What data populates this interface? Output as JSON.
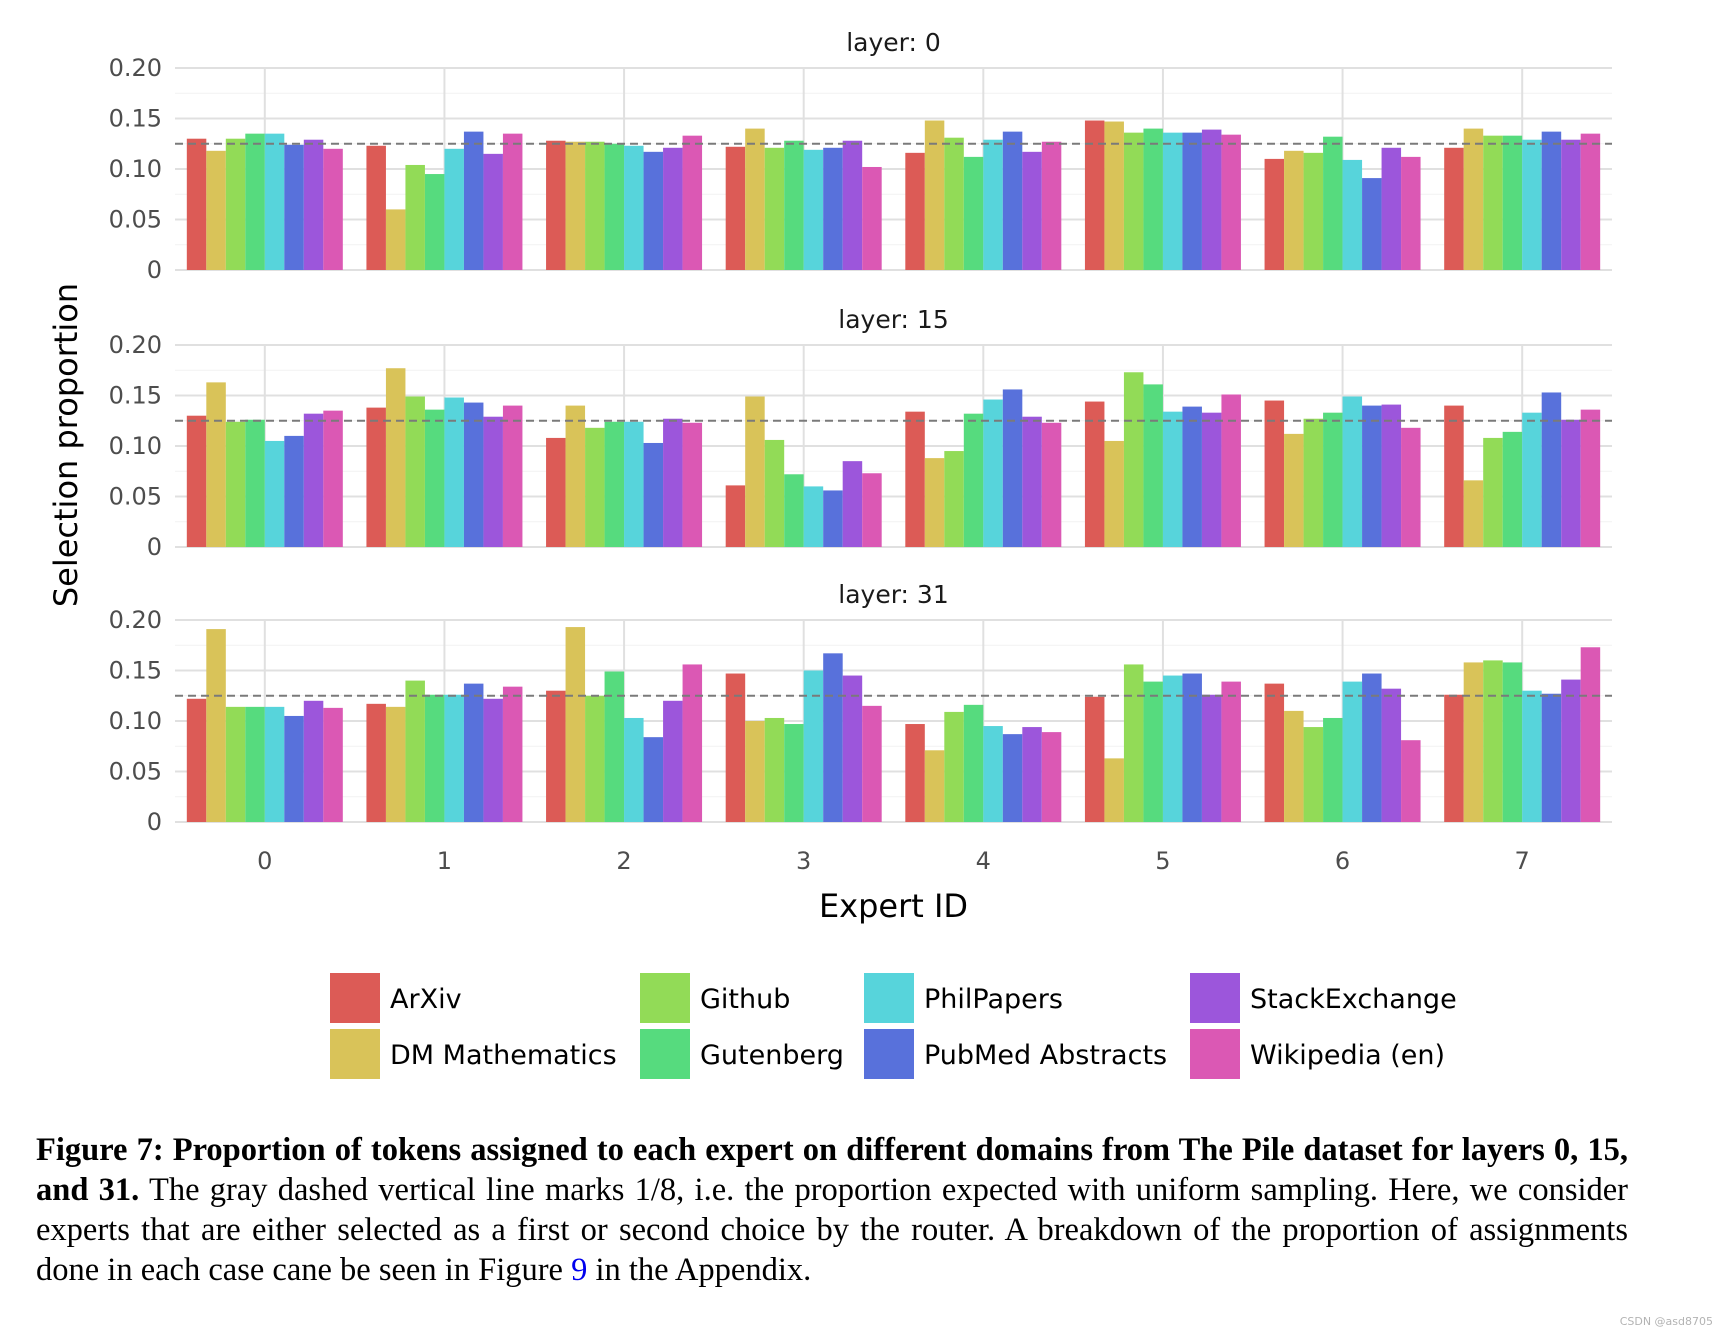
{
  "chart_data": {
    "type": "bar",
    "xlabel": "Expert ID",
    "ylabel": "Selection proportion",
    "categories": [
      "0",
      "1",
      "2",
      "3",
      "4",
      "5",
      "6",
      "7"
    ],
    "ylim": [
      0,
      0.2
    ],
    "yticks": [
      0,
      0.05,
      0.1,
      0.15,
      0.2
    ],
    "ytick_labels": [
      "0",
      "0.05",
      "0.10",
      "0.15",
      "0.20"
    ],
    "reference_line": 0.125,
    "domains": [
      {
        "name": "ArXiv",
        "color": "#dc5b56"
      },
      {
        "name": "DM Mathematics",
        "color": "#d9c359"
      },
      {
        "name": "Github",
        "color": "#92db57"
      },
      {
        "name": "Gutenberg",
        "color": "#56db7e"
      },
      {
        "name": "PhilPapers",
        "color": "#57d4db"
      },
      {
        "name": "PubMed Abstracts",
        "color": "#5871db"
      },
      {
        "name": "StackExchange",
        "color": "#9c56db"
      },
      {
        "name": "Wikipedia (en)",
        "color": "#db58b4"
      }
    ],
    "panels": [
      {
        "title": "layer: 0",
        "values": [
          [
            0.13,
            0.118,
            0.13,
            0.135,
            0.135,
            0.124,
            0.129,
            0.12
          ],
          [
            0.123,
            0.06,
            0.104,
            0.095,
            0.12,
            0.137,
            0.115,
            0.135
          ],
          [
            0.128,
            0.127,
            0.127,
            0.125,
            0.123,
            0.117,
            0.121,
            0.133
          ],
          [
            0.122,
            0.14,
            0.121,
            0.128,
            0.119,
            0.121,
            0.128,
            0.102
          ],
          [
            0.116,
            0.148,
            0.131,
            0.112,
            0.129,
            0.137,
            0.117,
            0.127
          ],
          [
            0.148,
            0.147,
            0.136,
            0.14,
            0.136,
            0.136,
            0.139,
            0.134
          ],
          [
            0.11,
            0.118,
            0.116,
            0.132,
            0.109,
            0.091,
            0.121,
            0.112
          ],
          [
            0.121,
            0.14,
            0.133,
            0.133,
            0.129,
            0.137,
            0.129,
            0.135
          ]
        ]
      },
      {
        "title": "layer: 15",
        "values": [
          [
            0.13,
            0.163,
            0.124,
            0.126,
            0.105,
            0.11,
            0.132,
            0.135
          ],
          [
            0.138,
            0.177,
            0.149,
            0.136,
            0.148,
            0.143,
            0.129,
            0.14
          ],
          [
            0.108,
            0.14,
            0.118,
            0.124,
            0.124,
            0.103,
            0.127,
            0.123
          ],
          [
            0.061,
            0.149,
            0.106,
            0.072,
            0.06,
            0.056,
            0.085,
            0.073
          ],
          [
            0.134,
            0.088,
            0.095,
            0.132,
            0.146,
            0.156,
            0.129,
            0.123
          ],
          [
            0.144,
            0.105,
            0.173,
            0.161,
            0.134,
            0.139,
            0.133,
            0.151
          ],
          [
            0.145,
            0.112,
            0.127,
            0.133,
            0.149,
            0.14,
            0.141,
            0.118
          ],
          [
            0.14,
            0.066,
            0.108,
            0.114,
            0.133,
            0.153,
            0.126,
            0.136
          ]
        ]
      },
      {
        "title": "layer: 31",
        "values": [
          [
            0.122,
            0.191,
            0.114,
            0.114,
            0.114,
            0.105,
            0.12,
            0.113
          ],
          [
            0.117,
            0.114,
            0.14,
            0.126,
            0.126,
            0.137,
            0.122,
            0.134
          ],
          [
            0.13,
            0.193,
            0.125,
            0.149,
            0.103,
            0.084,
            0.12,
            0.156
          ],
          [
            0.147,
            0.1,
            0.103,
            0.097,
            0.15,
            0.167,
            0.145,
            0.115
          ],
          [
            0.097,
            0.071,
            0.109,
            0.116,
            0.095,
            0.087,
            0.094,
            0.089
          ],
          [
            0.124,
            0.063,
            0.156,
            0.139,
            0.145,
            0.147,
            0.126,
            0.139
          ],
          [
            0.137,
            0.11,
            0.094,
            0.103,
            0.139,
            0.147,
            0.132,
            0.081
          ],
          [
            0.126,
            0.158,
            0.16,
            0.158,
            0.13,
            0.127,
            0.141,
            0.173
          ]
        ]
      }
    ]
  },
  "caption": {
    "bold": "Figure 7: Proportion of tokens assigned to each expert on different domains from The Pile dataset for layers 0, 15, and 31.",
    "text_before_link": "The gray dashed vertical line marks 1/8, i.e. the proportion expected with uniform sampling. Here, we consider experts that are either selected as a first or second choice by the router. A breakdown of the proportion of assignments done in each case cane be seen in Figure",
    "link": "9",
    "text_after_link": "in the Appendix."
  },
  "watermark": "CSDN @asd8705"
}
